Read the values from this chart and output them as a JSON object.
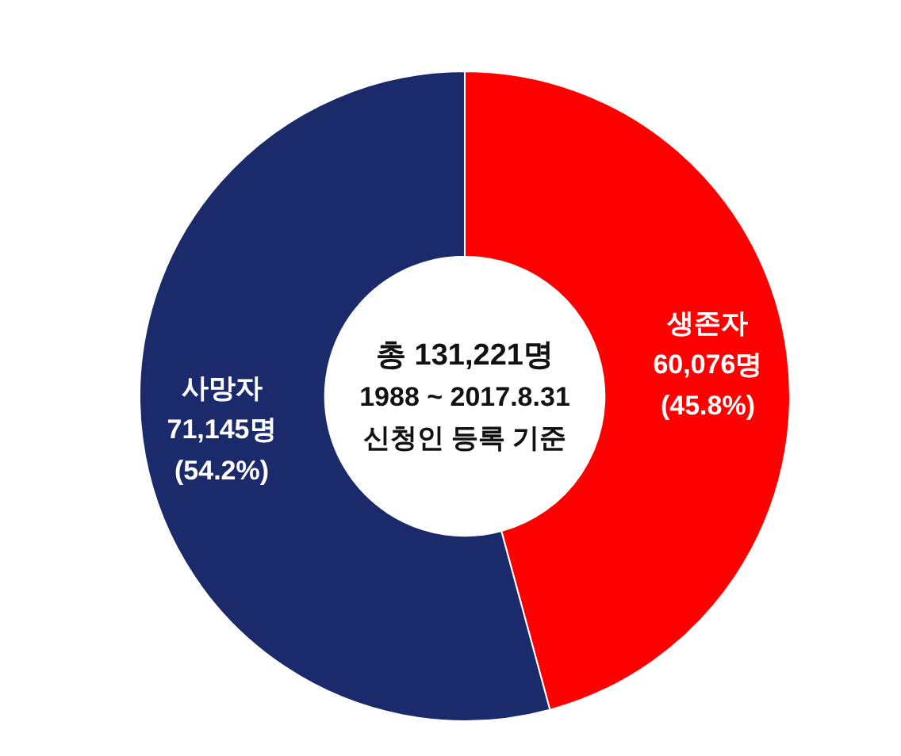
{
  "chart_data": {
    "type": "donut",
    "categories": [
      "생존자",
      "사망자"
    ],
    "values": [
      60076,
      71145
    ],
    "colors": [
      "#ff0000",
      "#1b2a6b"
    ],
    "value_labels": [
      "60,076명\n(45.8%)",
      "71,145명\n(54.2%)"
    ],
    "annotations": [
      "총 131,221명",
      "1988 ~ 2017.8.31\n신청인 등록 기준"
    ]
  }
}
